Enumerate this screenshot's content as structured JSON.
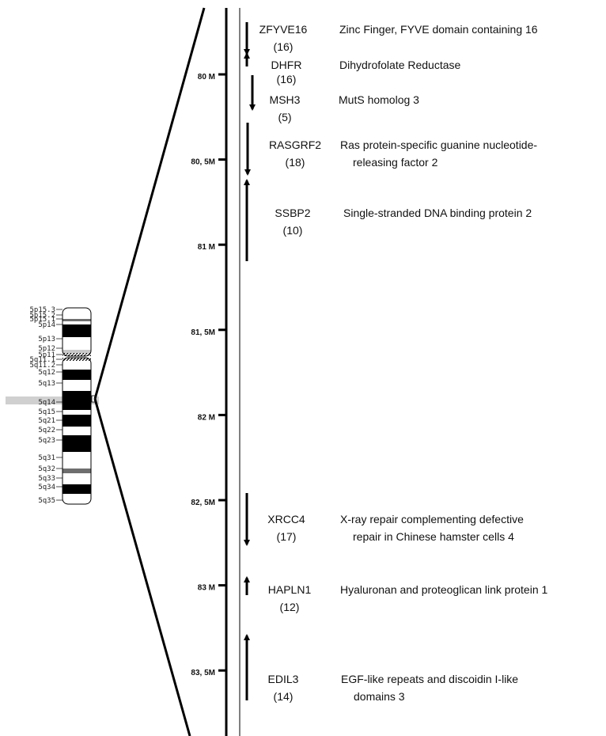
{
  "ideogram": {
    "bands": [
      {
        "label": "5p15.3",
        "stain": "white"
      },
      {
        "label": "5p15.2",
        "stain": "gray"
      },
      {
        "label": "5p15.1",
        "stain": "white"
      },
      {
        "label": "5p14",
        "stain": "black"
      },
      {
        "label": "5p13",
        "stain": "white"
      },
      {
        "label": "5p12",
        "stain": "lightgray"
      },
      {
        "label": "5p11",
        "stain": "centromere"
      },
      {
        "label": "5q11.1",
        "stain": "centromere"
      },
      {
        "label": "5q11.2",
        "stain": "white"
      },
      {
        "label": "5q12",
        "stain": "black"
      },
      {
        "label": "5q13",
        "stain": "white"
      },
      {
        "label": "5q14",
        "stain": "black",
        "highlighted": true
      },
      {
        "label": "5q15",
        "stain": "white"
      },
      {
        "label": "5q21",
        "stain": "black"
      },
      {
        "label": "5q22",
        "stain": "white"
      },
      {
        "label": "5q23",
        "stain": "black"
      },
      {
        "label": "5q31",
        "stain": "white"
      },
      {
        "label": "5q32",
        "stain": "gray"
      },
      {
        "label": "5q33",
        "stain": "white"
      },
      {
        "label": "5q34",
        "stain": "black"
      },
      {
        "label": "5q35",
        "stain": "white"
      }
    ]
  },
  "scale": {
    "ticks": [
      "80 M",
      "80, 5M",
      "81 M",
      "81, 5M",
      "82 M",
      "82, 5M",
      "83 M",
      "83, 5M"
    ]
  },
  "genes": [
    {
      "symbol": "ZFYVE16",
      "count": "(16)",
      "description": [
        "Zinc Finger, FYVE domain containing 16"
      ],
      "strand": "down"
    },
    {
      "symbol": "DHFR",
      "count": "(16)",
      "description": [
        "Dihydrofolate Reductase"
      ],
      "strand": "up"
    },
    {
      "symbol": "MSH3",
      "count": "(5)",
      "description": [
        "MutS homolog 3"
      ],
      "strand": "down"
    },
    {
      "symbol": "RASGRF2",
      "count": "(18)",
      "description": [
        "Ras protein-specific guanine nucleotide-",
        "releasing factor 2"
      ],
      "strand": "down"
    },
    {
      "symbol": "SSBP2",
      "count": "(10)",
      "description": [
        "Single-stranded DNA binding protein 2"
      ],
      "strand": "up"
    },
    {
      "symbol": "XRCC4",
      "count": "(17)",
      "description": [
        "X-ray repair complementing defective",
        "repair in Chinese hamster cells 4"
      ],
      "strand": "down"
    },
    {
      "symbol": "HAPLN1",
      "count": "(12)",
      "description": [
        "Hyaluronan and proteoglican link protein 1"
      ],
      "strand": "up"
    },
    {
      "symbol": "EDIL3",
      "count": "(14)",
      "description": [
        "EGF-like repeats and discoidin I-like",
        "domains 3"
      ],
      "strand": "up"
    }
  ]
}
